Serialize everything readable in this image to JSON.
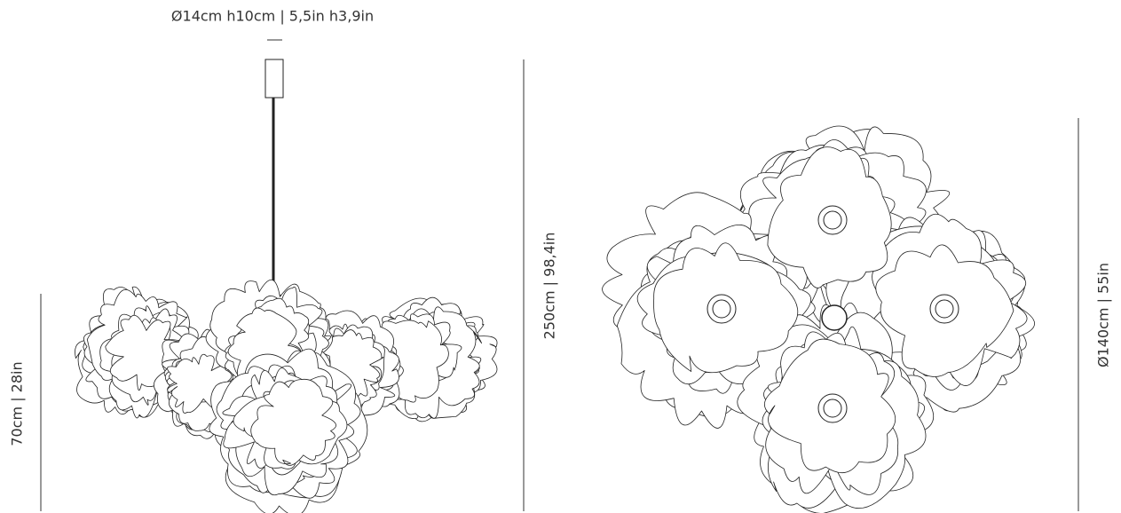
{
  "canopy_dimension": "Ø14cm h10cm | 5,5in h3,9in",
  "shade_height": "70cm | 28in",
  "total_height": "250cm | 98,4in",
  "diameter": "Ø140cm | 55in"
}
